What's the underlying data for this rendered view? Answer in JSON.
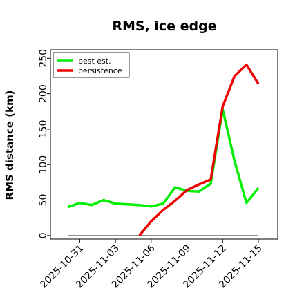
{
  "chart_data": {
    "type": "line",
    "title": "RMS, ice edge",
    "xlabel": "",
    "ylabel": "RMS distance (km)",
    "x": [
      "2025-10-30",
      "2025-10-31",
      "2025-11-01",
      "2025-11-02",
      "2025-11-03",
      "2025-11-04",
      "2025-11-05",
      "2025-11-06",
      "2025-11-07",
      "2025-11-08",
      "2025-11-09",
      "2025-11-10",
      "2025-11-11",
      "2025-11-12",
      "2025-11-13",
      "2025-11-14",
      "2025-11-15"
    ],
    "xticks": [
      "2025-10-31",
      "2025-11-03",
      "2025-11-06",
      "2025-11-09",
      "2025-11-12",
      "2025-11-15"
    ],
    "yticks": [
      0,
      50,
      100,
      150,
      200,
      250
    ],
    "ylim": [
      -5,
      262
    ],
    "xlim": [
      "2025-10-28 13:00",
      "2025-11-16 15:00"
    ],
    "grid": false,
    "legend_position": "top-left",
    "series": [
      {
        "name": "best est.",
        "color": "#00ee00",
        "values": [
          40,
          46,
          43,
          50,
          45,
          44,
          43,
          41,
          45,
          68,
          63,
          62,
          73,
          178,
          105,
          46,
          67
        ]
      },
      {
        "name": "persistence",
        "color": "#ee0000",
        "values": [
          null,
          null,
          null,
          null,
          null,
          null,
          0,
          20,
          36,
          49,
          64,
          72,
          79,
          182,
          225,
          241,
          214
        ]
      }
    ],
    "reference_line": {
      "value": 0,
      "color": "#808080"
    }
  }
}
